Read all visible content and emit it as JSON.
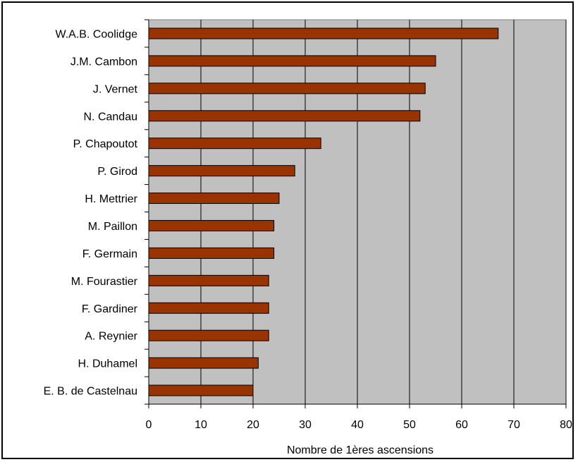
{
  "chart_data": {
    "type": "bar",
    "orientation": "horizontal",
    "title": "",
    "xlabel": "Nombre de 1ères ascensions",
    "ylabel": "",
    "xlim": [
      0,
      80
    ],
    "xticks": [
      0,
      10,
      20,
      30,
      40,
      50,
      60,
      70,
      80
    ],
    "grid": "vertical",
    "categories": [
      "W.A.B. Coolidge",
      "J.M. Cambon",
      "J. Vernet",
      "N. Candau",
      "P. Chapoutot",
      "P. Girod",
      "H. Mettrier",
      "M. Paillon",
      "F. Germain",
      "M. Fourastier",
      "F. Gardiner",
      "A. Reynier",
      "H. Duhamel",
      "E. B. de Castelnau"
    ],
    "values": [
      67,
      55,
      53,
      52,
      33,
      28,
      25,
      24,
      24,
      23,
      23,
      23,
      21,
      20
    ],
    "colors": {
      "bar": "#993300",
      "plot_background": "#c0c0c0",
      "gridline": "#000000"
    }
  }
}
